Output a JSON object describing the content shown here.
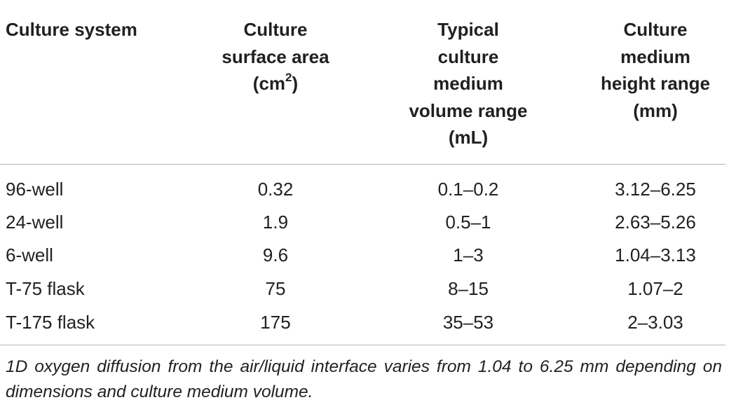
{
  "table": {
    "headers": [
      [
        "Culture system"
      ],
      [
        "Culture",
        "surface area",
        "(cm",
        "2",
        ")"
      ],
      [
        "Typical",
        "culture",
        "medium",
        "volume range",
        "(mL)"
      ],
      [
        "Culture",
        "medium",
        "height range",
        "(mm)"
      ]
    ],
    "rows": [
      [
        "96-well",
        "0.32",
        "0.1–0.2",
        "3.12–6.25"
      ],
      [
        "24-well",
        "1.9",
        "0.5–1",
        "2.63–5.26"
      ],
      [
        "6-well",
        "9.6",
        "1–3",
        "1.04–3.13"
      ],
      [
        "T-75 flask",
        "75",
        "8–15",
        "1.07–2"
      ],
      [
        "T-175 flask",
        "175",
        "35–53",
        "2–3.03"
      ]
    ]
  },
  "footnote": "1D oxygen diffusion from the air/liquid interface varies from 1.04 to 6.25 mm depending on dimensions and culture medium volume."
}
